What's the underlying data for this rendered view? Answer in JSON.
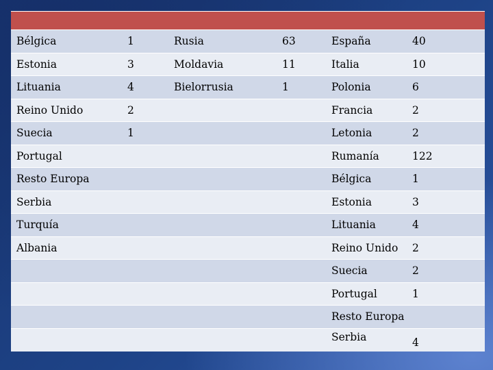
{
  "table": {
    "rows": [
      [
        "Bélgica",
        "1",
        "Rusia",
        "63",
        "España",
        "40"
      ],
      [
        "Estonia",
        "3",
        "Moldavia",
        "11",
        "Italia",
        "10"
      ],
      [
        "Lituania",
        "4",
        "Bielorrusia",
        "1",
        "Polonia",
        "6"
      ],
      [
        "Reino Unido",
        "2",
        "",
        "",
        "Francia",
        "2"
      ],
      [
        "Suecia",
        "1",
        "",
        "",
        "Letonia",
        "2"
      ],
      [
        "Portugal",
        "",
        "",
        "",
        "Rumanía",
        "122"
      ],
      [
        "Resto Europa",
        "",
        "",
        "",
        "Bélgica",
        "1"
      ],
      [
        "Serbia",
        "",
        "",
        "",
        "Estonia",
        "3"
      ],
      [
        "Turquía",
        "",
        "",
        "",
        "Lituania",
        "4"
      ],
      [
        "Albania",
        "",
        "",
        "",
        "Reino Unido",
        "2"
      ],
      [
        "",
        "",
        "",
        "",
        "Suecia",
        "2"
      ],
      [
        "",
        "",
        "",
        "",
        "Portugal",
        "1"
      ],
      [
        "",
        "",
        "",
        "",
        "Resto Europa",
        ""
      ],
      [
        "",
        "",
        "",
        "",
        "Serbia",
        "4"
      ]
    ]
  },
  "colors": {
    "header": "#c0504d",
    "row_odd": "#d0d8e8",
    "row_even": "#e9edf4",
    "background": "#1e4387"
  }
}
